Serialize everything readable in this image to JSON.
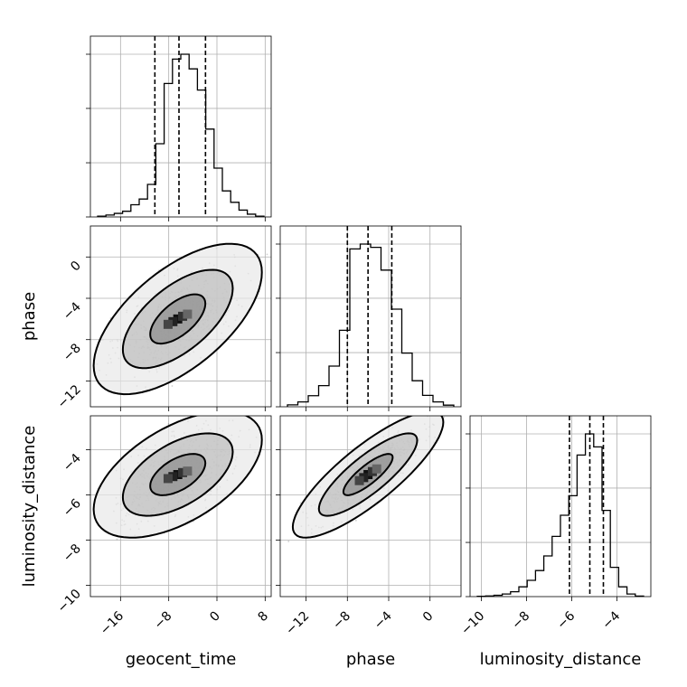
{
  "chart_data": {
    "type": "corner",
    "parameters": [
      {
        "key": "geocent_time",
        "label": "geocent_time",
        "range": [
          -21,
          9
        ],
        "ticks": [
          -16,
          -8,
          0,
          8
        ],
        "tick_labels": [
          "−16",
          "−8",
          "0",
          "8"
        ],
        "quantiles": [
          -10.3,
          -6.3,
          -1.9
        ],
        "hist_bins": [
          0.005,
          0.012,
          0.022,
          0.035,
          0.075,
          0.11,
          0.2,
          0.45,
          0.82,
          0.97,
          1.0,
          0.91,
          0.78,
          0.54,
          0.3,
          0.16,
          0.09,
          0.042,
          0.017,
          0.005
        ]
      },
      {
        "key": "phase",
        "label": "phase",
        "range": [
          -14.5,
          3
        ],
        "ticks": [
          -12,
          -8,
          -4,
          0
        ],
        "tick_labels": [
          "−12",
          "−8",
          "−4",
          "0"
        ],
        "quantiles": [
          -8.0,
          -6.0,
          -3.7
        ],
        "hist_bins": [
          0.012,
          0.03,
          0.068,
          0.13,
          0.25,
          0.47,
          0.97,
          1.0,
          0.98,
          0.84,
          0.6,
          0.33,
          0.16,
          0.07,
          0.03,
          0.01
        ]
      },
      {
        "key": "luminosity_distance",
        "label": "luminosity_distance",
        "range": [
          -10.5,
          -2.5
        ],
        "ticks": [
          -10,
          -8,
          -6,
          -4
        ],
        "tick_labels": [
          "−10",
          "−8",
          "−6",
          "−4"
        ],
        "quantiles": [
          -6.1,
          -5.2,
          -4.6
        ],
        "hist_bins": [
          0.002,
          0.004,
          0.008,
          0.016,
          0.03,
          0.06,
          0.1,
          0.16,
          0.25,
          0.37,
          0.5,
          0.62,
          0.87,
          1.0,
          0.92,
          0.53,
          0.18,
          0.06,
          0.016,
          0.003
        ]
      }
    ],
    "pairs": [
      {
        "x": "geocent_time",
        "y": "phase",
        "center": [
          -6.5,
          -6.0
        ],
        "sd": [
          4.6,
          2.4
        ],
        "rho": 0.62
      },
      {
        "x": "geocent_time",
        "y": "luminosity_distance",
        "center": [
          -6.5,
          -5.1
        ],
        "sd": [
          4.6,
          0.92
        ],
        "rho": 0.55
      },
      {
        "x": "phase",
        "y": "luminosity_distance",
        "center": [
          -6.0,
          -5.1
        ],
        "sd": [
          2.4,
          0.92
        ],
        "rho": 0.83
      }
    ],
    "quantile_style": "dashed",
    "contour_levels": [
      0.39,
      0.86,
      0.99
    ],
    "grid": true,
    "colors": {
      "ink": "#000000",
      "points": "#555555",
      "grid": "#b0b0b0"
    }
  }
}
